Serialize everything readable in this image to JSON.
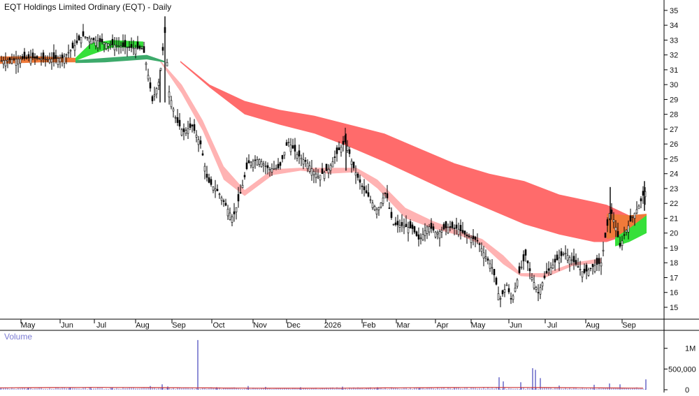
{
  "chart_data": {
    "type": "candlestick-with-ribbons",
    "title": "EQT Holdings Limited Ordinary (EQT) - Daily",
    "price_axis": {
      "side": "right",
      "ylim": [
        14.2,
        35.7
      ],
      "ticks": [
        35,
        34,
        33,
        32,
        31,
        30,
        29,
        28,
        27,
        26,
        25,
        24,
        23,
        22,
        21,
        20,
        19,
        18,
        17,
        16,
        15
      ]
    },
    "x_axis": {
      "months": [
        "May",
        "Jun",
        "Jul",
        "Aug",
        "Sep",
        "Oct",
        "Nov",
        "Dec",
        "2026",
        "Feb",
        "Mar",
        "Apr",
        "May",
        "Jun",
        "Jul",
        "Aug",
        "Sep"
      ]
    },
    "price_path": [
      [
        0,
        31.6
      ],
      [
        20,
        31.7
      ],
      [
        45,
        31.8
      ],
      [
        70,
        31.7
      ],
      [
        90,
        31.8
      ],
      [
        105,
        32.5
      ],
      [
        118,
        33.3
      ],
      [
        135,
        33.0
      ],
      [
        160,
        32.7
      ],
      [
        185,
        32.5
      ],
      [
        205,
        32.4
      ],
      [
        210,
        31.2
      ],
      [
        218,
        28.9
      ],
      [
        228,
        30.3
      ],
      [
        236,
        33.5
      ],
      [
        242,
        29.5
      ],
      [
        252,
        27.6
      ],
      [
        262,
        26.8
      ],
      [
        275,
        27.2
      ],
      [
        287,
        26.0
      ],
      [
        297,
        23.5
      ],
      [
        312,
        22.8
      ],
      [
        325,
        21.7
      ],
      [
        333,
        21.0
      ],
      [
        342,
        22.3
      ],
      [
        355,
        24.7
      ],
      [
        370,
        25.0
      ],
      [
        385,
        24.3
      ],
      [
        400,
        24.4
      ],
      [
        412,
        26.2
      ],
      [
        425,
        25.3
      ],
      [
        440,
        24.7
      ],
      [
        455,
        23.8
      ],
      [
        470,
        24.3
      ],
      [
        485,
        25.6
      ],
      [
        495,
        26.2
      ],
      [
        505,
        24.5
      ],
      [
        517,
        23.2
      ],
      [
        528,
        22.4
      ],
      [
        540,
        21.5
      ],
      [
        552,
        22.8
      ],
      [
        562,
        20.6
      ],
      [
        575,
        20.5
      ],
      [
        590,
        20.3
      ],
      [
        600,
        19.5
      ],
      [
        612,
        20.5
      ],
      [
        625,
        20.0
      ],
      [
        640,
        20.4
      ],
      [
        655,
        20.3
      ],
      [
        668,
        19.8
      ],
      [
        683,
        19.5
      ],
      [
        695,
        18.4
      ],
      [
        705,
        17.6
      ],
      [
        715,
        15.5
      ],
      [
        725,
        16.5
      ],
      [
        732,
        15.4
      ],
      [
        742,
        17.2
      ],
      [
        752,
        18.5
      ],
      [
        760,
        17.1
      ],
      [
        770,
        16.0
      ],
      [
        782,
        17.3
      ],
      [
        795,
        18.1
      ],
      [
        808,
        18.7
      ],
      [
        822,
        18.0
      ],
      [
        835,
        17.3
      ],
      [
        850,
        17.8
      ],
      [
        860,
        18.0
      ],
      [
        866,
        19.7
      ],
      [
        873,
        21.6
      ],
      [
        880,
        20.6
      ],
      [
        887,
        19.1
      ],
      [
        895,
        20.1
      ],
      [
        905,
        21.1
      ],
      [
        915,
        21.9
      ],
      [
        922,
        22.8
      ]
    ],
    "ribbons": [
      {
        "name": "long-term band",
        "color": "#ff6b6b",
        "upper": [
          [
            258,
            31.6
          ],
          [
            300,
            30.0
          ],
          [
            350,
            28.9
          ],
          [
            400,
            28.3
          ],
          [
            450,
            27.9
          ],
          [
            500,
            27.3
          ],
          [
            550,
            26.7
          ],
          [
            600,
            25.7
          ],
          [
            650,
            24.7
          ],
          [
            700,
            24.0
          ],
          [
            750,
            23.5
          ],
          [
            800,
            22.6
          ],
          [
            850,
            22.1
          ],
          [
            868,
            21.9
          ],
          [
            900,
            21.2
          ]
        ],
        "lower": [
          [
            258,
            31.5
          ],
          [
            300,
            29.8
          ],
          [
            350,
            28.0
          ],
          [
            400,
            27.3
          ],
          [
            450,
            26.7
          ],
          [
            500,
            25.8
          ],
          [
            550,
            24.8
          ],
          [
            600,
            23.7
          ],
          [
            650,
            22.6
          ],
          [
            700,
            21.6
          ],
          [
            750,
            20.6
          ],
          [
            800,
            19.9
          ],
          [
            850,
            19.4
          ],
          [
            868,
            19.4
          ],
          [
            900,
            19.9
          ]
        ]
      },
      {
        "name": "short-term band",
        "color": "#ffb3b3",
        "upper": [
          [
            228,
            31.7
          ],
          [
            260,
            30.0
          ],
          [
            290,
            27.6
          ],
          [
            320,
            24.5
          ],
          [
            350,
            22.9
          ],
          [
            390,
            24.3
          ],
          [
            430,
            24.4
          ],
          [
            470,
            24.4
          ],
          [
            510,
            24.4
          ],
          [
            540,
            23.6
          ],
          [
            580,
            21.7
          ],
          [
            620,
            20.8
          ],
          [
            660,
            20.1
          ],
          [
            690,
            19.6
          ],
          [
            720,
            18.5
          ],
          [
            745,
            17.3
          ],
          [
            780,
            17.3
          ],
          [
            820,
            18.0
          ],
          [
            860,
            18.3
          ]
        ],
        "lower": [
          [
            228,
            31.6
          ],
          [
            260,
            29.4
          ],
          [
            290,
            26.9
          ],
          [
            320,
            23.6
          ],
          [
            350,
            22.5
          ],
          [
            390,
            23.9
          ],
          [
            430,
            24.2
          ],
          [
            470,
            24.0
          ],
          [
            510,
            24.1
          ],
          [
            540,
            23.0
          ],
          [
            580,
            21.0
          ],
          [
            620,
            20.3
          ],
          [
            660,
            19.8
          ],
          [
            690,
            19.2
          ],
          [
            720,
            17.9
          ],
          [
            745,
            17.1
          ],
          [
            780,
            17.0
          ],
          [
            820,
            17.8
          ],
          [
            860,
            18.0
          ]
        ]
      },
      {
        "name": "long-term band early",
        "color": "#3daa6b",
        "upper": [
          [
            108,
            31.65
          ],
          [
            150,
            31.8
          ],
          [
            180,
            31.9
          ],
          [
            210,
            32.0
          ],
          [
            235,
            31.6
          ]
        ],
        "lower": [
          [
            108,
            31.45
          ],
          [
            150,
            31.5
          ],
          [
            180,
            31.6
          ],
          [
            210,
            31.7
          ],
          [
            235,
            31.5
          ]
        ]
      },
      {
        "name": "short-term band early",
        "color": "#36e03a",
        "upper": [
          [
            108,
            31.8
          ],
          [
            130,
            32.8
          ],
          [
            160,
            33.0
          ],
          [
            205,
            32.9
          ]
        ],
        "lower": [
          [
            108,
            31.6
          ],
          [
            130,
            32.0
          ],
          [
            160,
            32.5
          ],
          [
            205,
            32.5
          ]
        ]
      },
      {
        "name": "crossover zone",
        "color": "#f07a3a",
        "upper": [
          [
            868,
            21.3
          ],
          [
            900,
            21.2
          ],
          [
            925,
            21.3
          ]
        ],
        "lower": [
          [
            868,
            19.6
          ],
          [
            900,
            19.9
          ],
          [
            925,
            20.0
          ]
        ]
      },
      {
        "name": "short-term recent",
        "color": "#36e03a",
        "upper": [
          [
            880,
            19.7
          ],
          [
            900,
            20.3
          ],
          [
            925,
            21.2
          ]
        ],
        "lower": [
          [
            880,
            19.1
          ],
          [
            900,
            19.4
          ],
          [
            925,
            20.0
          ]
        ]
      }
    ],
    "volume_axis": {
      "side": "right",
      "label": "Volume",
      "ylim": [
        0,
        1400000
      ],
      "ticks": [
        "1M",
        "500,000",
        "0"
      ]
    },
    "volume_spikes": [
      [
        0,
        40000
      ],
      [
        40,
        45000
      ],
      [
        100,
        50000
      ],
      [
        130,
        60000
      ],
      [
        160,
        40000
      ],
      [
        215,
        90000
      ],
      [
        232,
        130000
      ],
      [
        240,
        80000
      ],
      [
        283,
        1200000
      ],
      [
        310,
        60000
      ],
      [
        355,
        90000
      ],
      [
        380,
        70000
      ],
      [
        430,
        60000
      ],
      [
        490,
        75000
      ],
      [
        540,
        60000
      ],
      [
        600,
        50000
      ],
      [
        650,
        55000
      ],
      [
        714,
        300000
      ],
      [
        720,
        200000
      ],
      [
        745,
        180000
      ],
      [
        762,
        520000
      ],
      [
        766,
        480000
      ],
      [
        773,
        280000
      ],
      [
        800,
        100000
      ],
      [
        850,
        120000
      ],
      [
        872,
        150000
      ],
      [
        887,
        130000
      ],
      [
        924,
        250000
      ]
    ],
    "volume_average_color": "#cc3333"
  }
}
